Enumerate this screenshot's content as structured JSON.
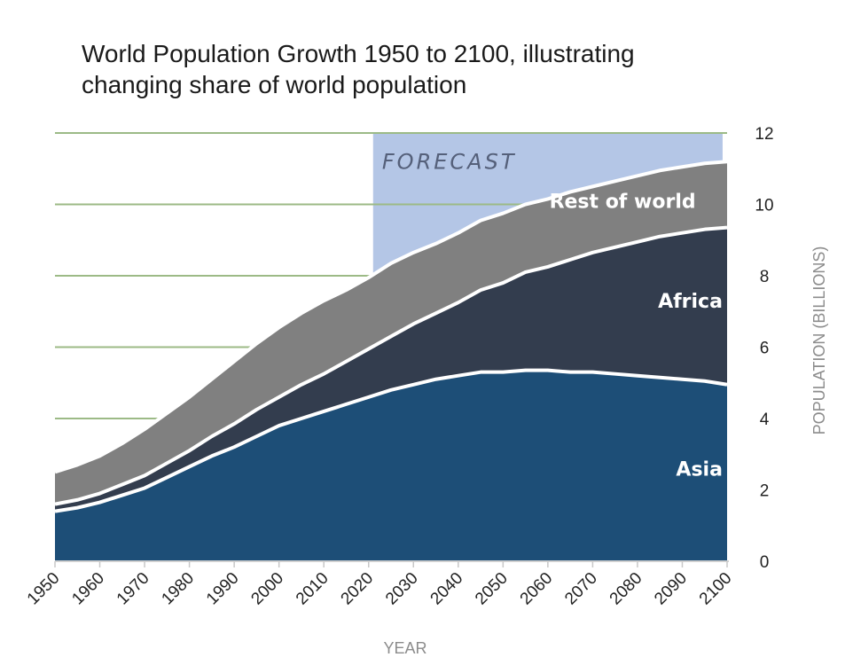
{
  "chart_data": {
    "type": "area",
    "stacked": true,
    "title_lines": [
      "World Population Growth 1950 to 2100, illustrating",
      "changing share of world population"
    ],
    "xlabel": "YEAR",
    "ylabel": "POPULATION (BILLIONS)",
    "xlim": [
      1950,
      2100
    ],
    "ylim": [
      0,
      12
    ],
    "x_ticks": [
      "1950",
      "1960",
      "1970",
      "1980",
      "1990",
      "2000",
      "2010",
      "2020",
      "2030",
      "2040",
      "2050",
      "2060",
      "2070",
      "2080",
      "2090",
      "2100"
    ],
    "y_ticks": [
      "0",
      "2",
      "4",
      "6",
      "8",
      "10",
      "12"
    ],
    "x": [
      1950,
      1955,
      1960,
      1965,
      1970,
      1975,
      1980,
      1985,
      1990,
      1995,
      2000,
      2005,
      2010,
      2015,
      2020,
      2025,
      2030,
      2035,
      2040,
      2045,
      2050,
      2055,
      2060,
      2065,
      2070,
      2075,
      2080,
      2085,
      2090,
      2095,
      2100
    ],
    "series": [
      {
        "name": "Asia",
        "color": "#1d4e77",
        "values": [
          1.4,
          1.5,
          1.65,
          1.85,
          2.05,
          2.35,
          2.65,
          2.95,
          3.2,
          3.5,
          3.8,
          4.0,
          4.2,
          4.4,
          4.6,
          4.8,
          4.95,
          5.1,
          5.2,
          5.3,
          5.3,
          5.35,
          5.35,
          5.3,
          5.3,
          5.25,
          5.2,
          5.15,
          5.1,
          5.05,
          4.95
        ]
      },
      {
        "name": "Africa",
        "color": "#333d4e",
        "values": [
          0.2,
          0.22,
          0.25,
          0.3,
          0.35,
          0.4,
          0.45,
          0.55,
          0.65,
          0.75,
          0.8,
          0.95,
          1.05,
          1.2,
          1.35,
          1.5,
          1.7,
          1.85,
          2.05,
          2.3,
          2.5,
          2.75,
          2.9,
          3.15,
          3.35,
          3.55,
          3.75,
          3.95,
          4.1,
          4.25,
          4.4
        ]
      },
      {
        "name": "Rest of world",
        "color": "#808080",
        "values": [
          0.9,
          0.98,
          1.05,
          1.15,
          1.3,
          1.4,
          1.5,
          1.6,
          1.75,
          1.85,
          1.95,
          2.0,
          2.05,
          2.0,
          2.0,
          2.05,
          2.0,
          1.95,
          1.95,
          1.95,
          1.95,
          1.9,
          1.9,
          1.9,
          1.85,
          1.85,
          1.85,
          1.85,
          1.85,
          1.85,
          1.85
        ]
      }
    ],
    "gridlines_y": [
      4,
      6,
      8,
      10,
      12
    ],
    "forecast": {
      "label": "FORECAST",
      "start_year": 2021,
      "end_year": 2099,
      "color": "#b4c6e6"
    },
    "series_labels": [
      {
        "text": "Asia",
        "year": 2099,
        "value": 2.4
      },
      {
        "text": "Africa",
        "year": 2099,
        "value": 7.1
      },
      {
        "text": "Rest of world",
        "year": 2093,
        "value": 9.9
      }
    ],
    "forecast_label_pos": {
      "year": 2038,
      "value": 11.0
    }
  }
}
